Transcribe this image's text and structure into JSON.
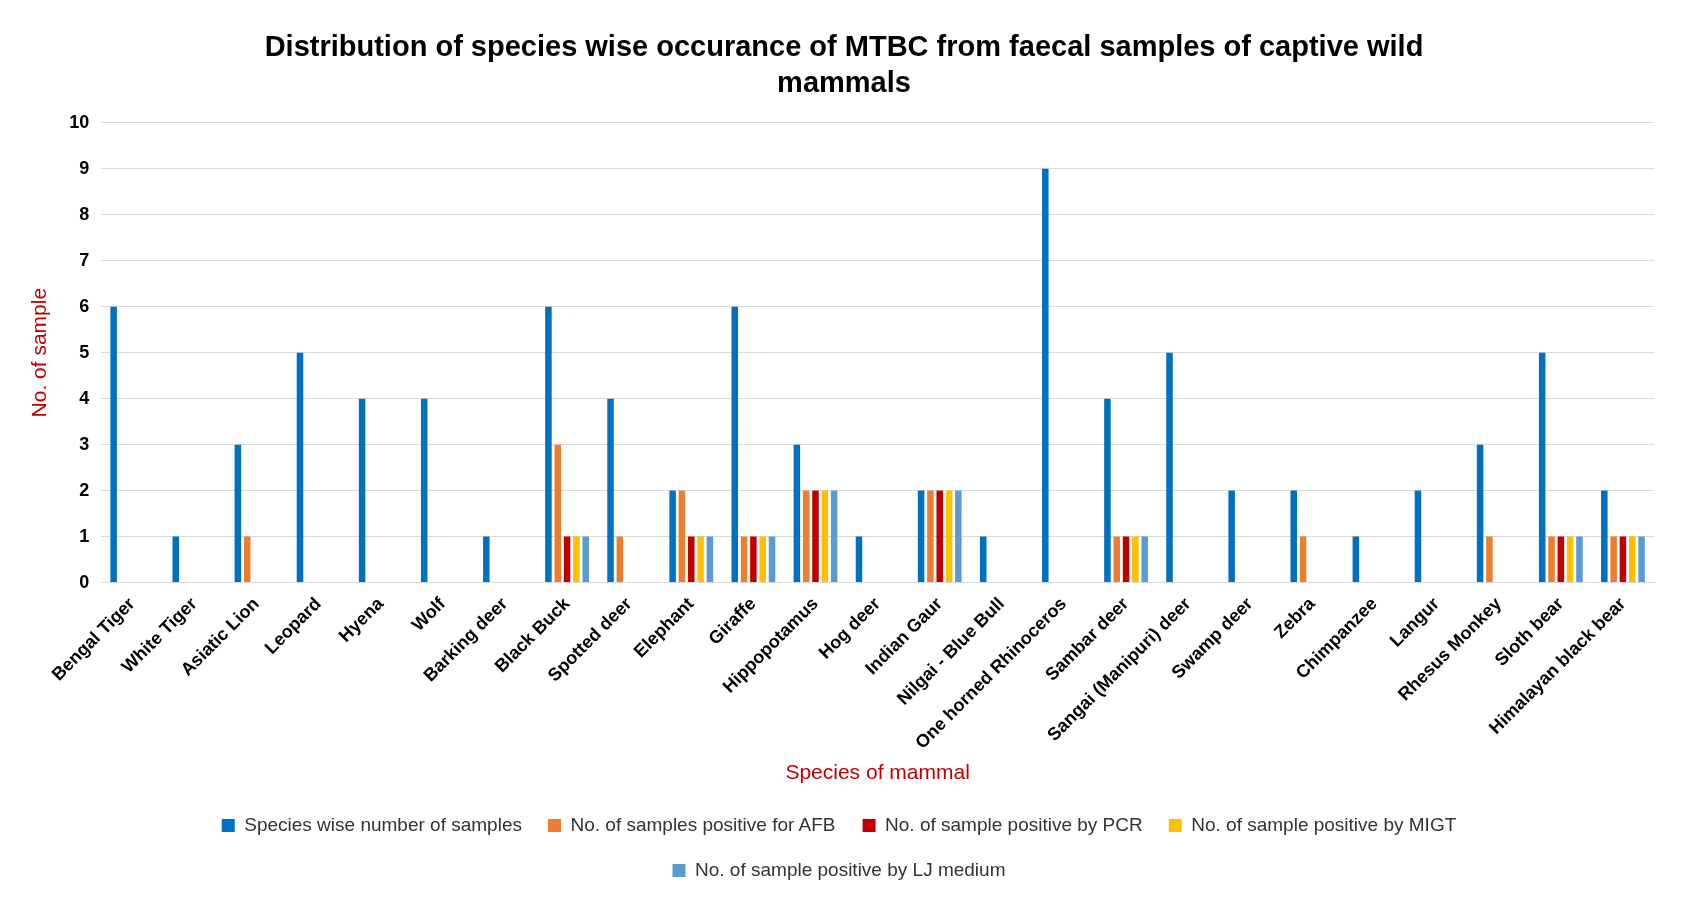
{
  "chart_data": {
    "type": "bar",
    "title": "Distribution of species wise occurance of MTBC from faecal samples of captive wild mammals",
    "xlabel": "Species of mammal",
    "ylabel": "No. of sample",
    "categories": [
      "Bengal Tiger",
      "White Tiger",
      "Asiatic Lion",
      "Leopard",
      "Hyena",
      "Wolf",
      "Barking deer",
      "Black Buck",
      "Spotted deer",
      "Elephant",
      "Giraffe",
      "Hippopotamus",
      "Hog deer",
      "Indian Gaur",
      "Nilgai - Blue Bull",
      "One horned Rhinoceros",
      "Sambar deer",
      "Sangai (Manipuri) deer",
      "Swamp deer",
      "Zebra",
      "Chimpanzee",
      "Langur",
      "Rhesus Monkey",
      "Sloth bear",
      "Himalayan black bear"
    ],
    "series": [
      {
        "name": "Species wise number of samples",
        "color": "#0070c0",
        "values": [
          6,
          1,
          3,
          5,
          4,
          4,
          1,
          6,
          4,
          2,
          6,
          3,
          1,
          2,
          1,
          9,
          4,
          5,
          2,
          2,
          1,
          2,
          3,
          5,
          2
        ]
      },
      {
        "name": "No. of samples positive for AFB",
        "color": "#ed7d31",
        "values": [
          0,
          0,
          1,
          0,
          0,
          0,
          0,
          3,
          1,
          2,
          1,
          2,
          0,
          2,
          0,
          0,
          1,
          0,
          0,
          1,
          0,
          0,
          1,
          1,
          1
        ]
      },
      {
        "name": "No. of sample positive by PCR",
        "color": "#c00000",
        "values": [
          0,
          0,
          0,
          0,
          0,
          0,
          0,
          1,
          0,
          1,
          1,
          2,
          0,
          2,
          0,
          0,
          1,
          0,
          0,
          0,
          0,
          0,
          0,
          1,
          1
        ]
      },
      {
        "name": "No. of sample positive by MIGT",
        "color": "#ffc000",
        "values": [
          0,
          0,
          0,
          0,
          0,
          0,
          0,
          1,
          0,
          1,
          1,
          2,
          0,
          2,
          0,
          0,
          1,
          0,
          0,
          0,
          0,
          0,
          0,
          1,
          1
        ]
      },
      {
        "name": "No. of sample positive by LJ medium",
        "color": "#5b9bd5",
        "values": [
          0,
          0,
          0,
          0,
          0,
          0,
          0,
          1,
          0,
          1,
          1,
          2,
          0,
          2,
          0,
          0,
          1,
          0,
          0,
          0,
          0,
          0,
          0,
          1,
          1
        ]
      }
    ],
    "ylim": [
      0,
      10
    ],
    "yticks": [
      0,
      1,
      2,
      3,
      4,
      5,
      6,
      7,
      8,
      9,
      10
    ],
    "grid": "y",
    "legend": "bottom"
  }
}
